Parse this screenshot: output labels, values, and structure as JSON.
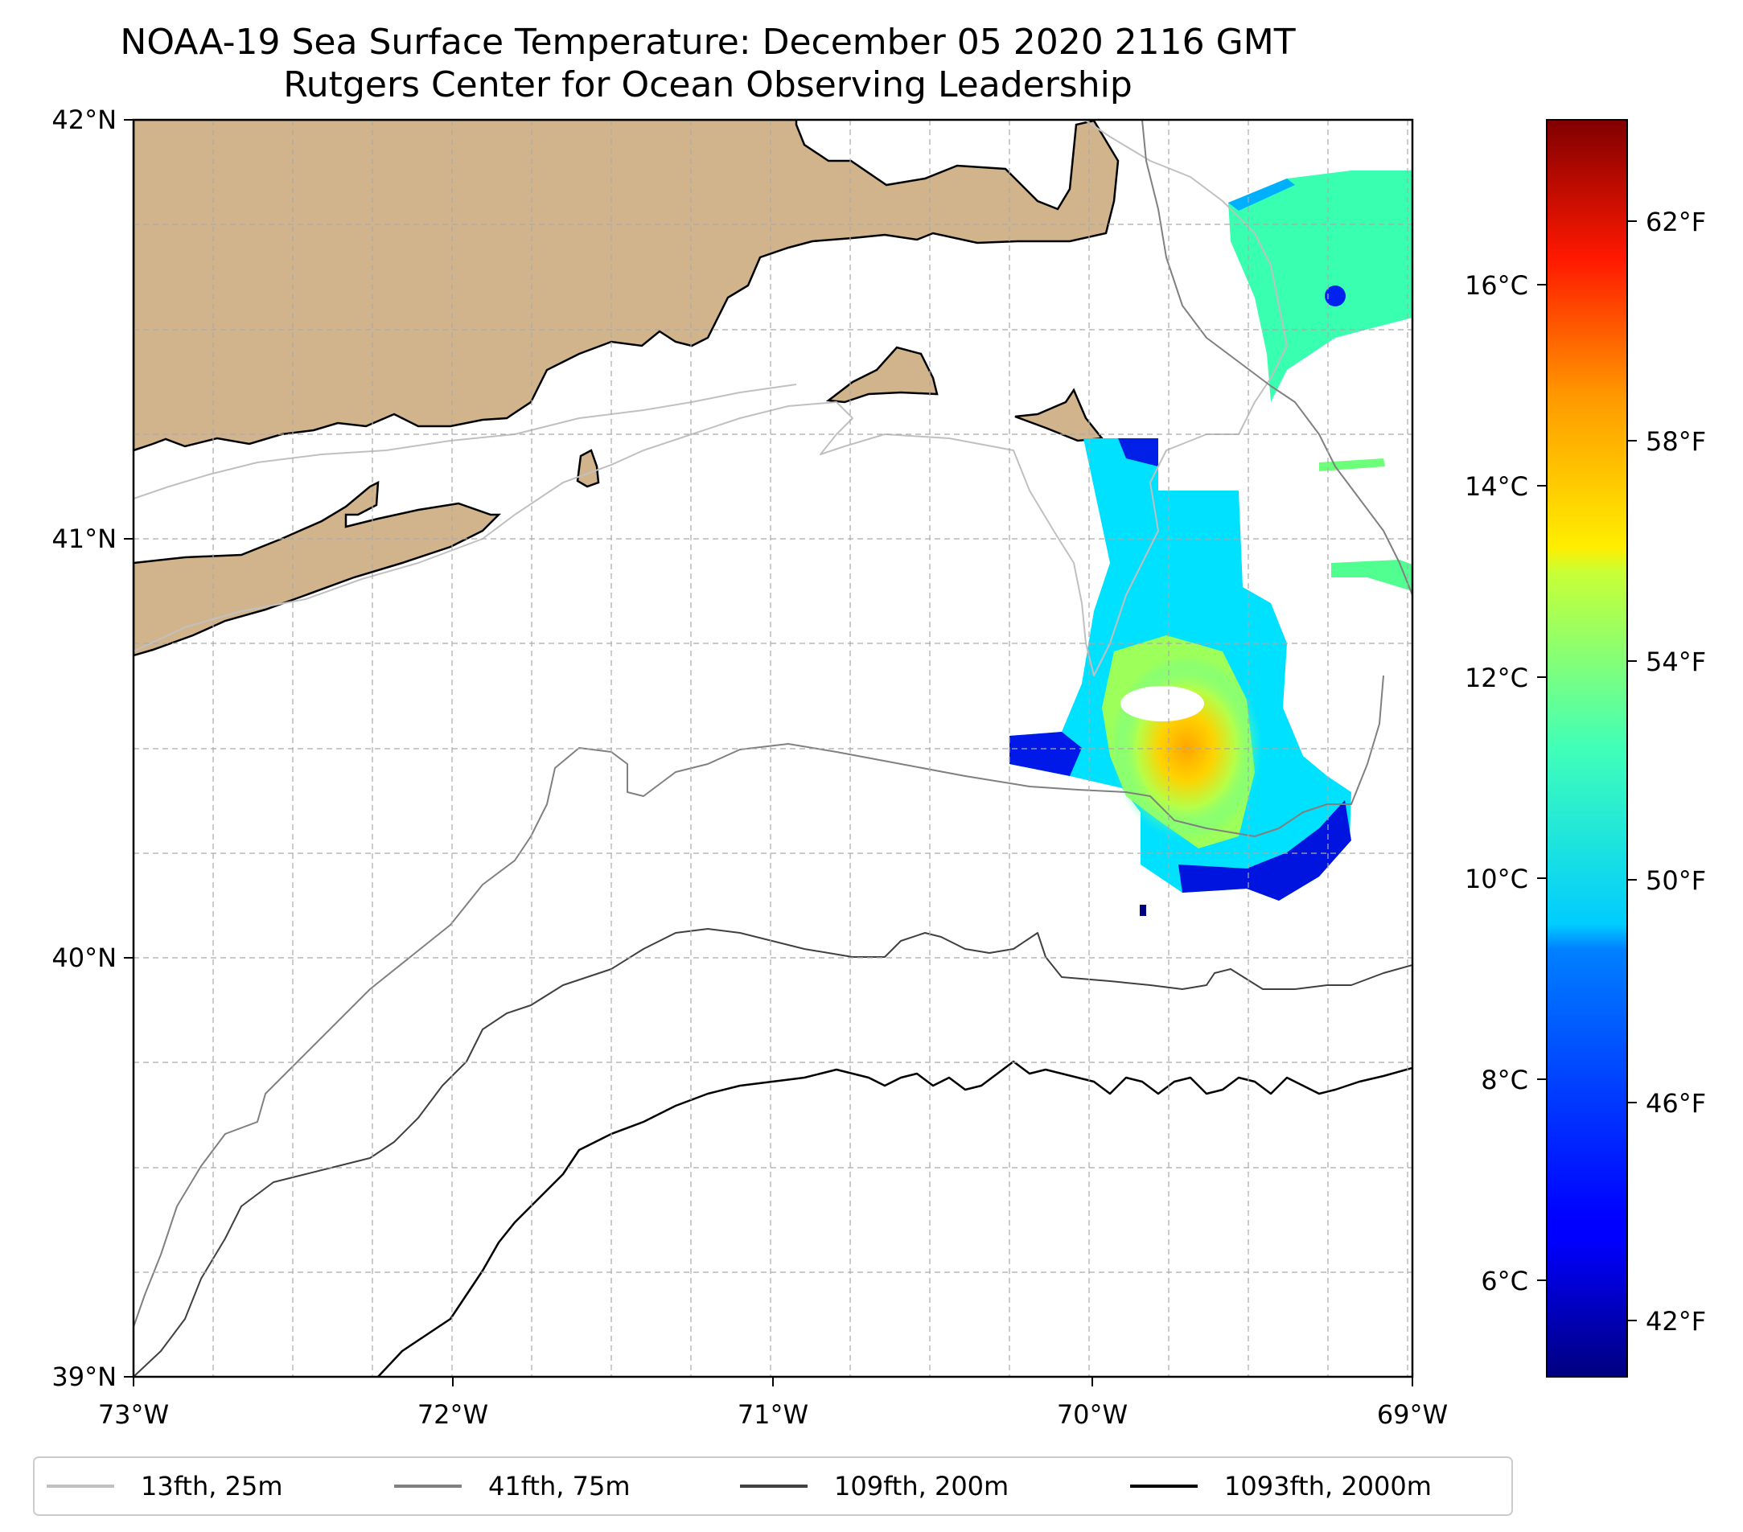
{
  "title": {
    "line1": "NOAA-19 Sea Surface Temperature: December 05 2020 2116 GMT",
    "line2": "Rutgers Center for Ocean Observing Leadership"
  },
  "map": {
    "lon_range": [
      -73,
      -69
    ],
    "lat_range": [
      39,
      42
    ],
    "lon_ticks": [
      -73,
      -72,
      -71,
      -70,
      -69
    ],
    "lon_tick_labels": [
      "73°W",
      "72°W",
      "71°W",
      "70°W",
      "69°W"
    ],
    "lat_ticks": [
      39,
      40,
      41,
      42
    ],
    "lat_tick_labels": [
      "39°N",
      "40°N",
      "41°N",
      "42°N"
    ],
    "gridlines": true,
    "land_color": "#d2b48c",
    "ocean_color": "#ffffff"
  },
  "colorbar": {
    "colormap": "jet",
    "range_c": [
      5.0,
      17.5
    ],
    "celsius_ticks": [
      6,
      8,
      10,
      12,
      14,
      16
    ],
    "celsius_labels": [
      "6°C",
      "8°C",
      "10°C",
      "12°C",
      "14°C",
      "16°C"
    ],
    "fahrenheit_ticks": [
      42,
      46,
      50,
      54,
      58,
      62
    ],
    "fahrenheit_labels": [
      "42°F",
      "46°F",
      "50°F",
      "54°F",
      "58°F",
      "62°F"
    ]
  },
  "legend": {
    "items": [
      {
        "label": "13fth, 25m",
        "color": "#c0c0c0"
      },
      {
        "label": "41fth, 75m",
        "color": "#808080"
      },
      {
        "label": "109fth, 200m",
        "color": "#404040"
      },
      {
        "label": "1093fth, 2000m",
        "color": "#000000"
      }
    ]
  }
}
